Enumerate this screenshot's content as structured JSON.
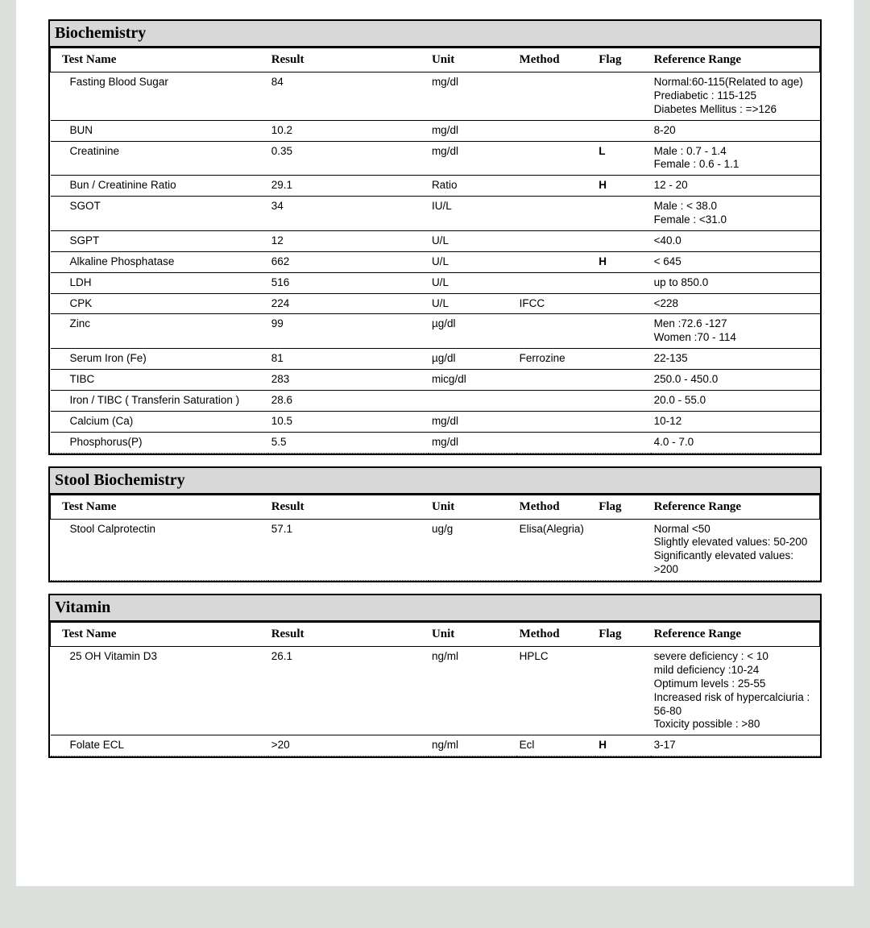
{
  "colors": {
    "page_bg": "#dde1de",
    "paper_bg": "#ffffff",
    "border": "#000000",
    "section_bg": "#d8d8d8",
    "dotted": "#555555"
  },
  "fontsizes": {
    "section_title_pt": 15,
    "header_pt": 11,
    "cell_pt": 10
  },
  "col_headers": {
    "test": "Test Name",
    "result": "Result",
    "unit": "Unit",
    "method": "Method",
    "flag": "Flag",
    "ref": "Reference Range"
  },
  "sections": [
    {
      "title": "Biochemistry",
      "rows": [
        {
          "test": "Fasting Blood Sugar",
          "result": "84",
          "unit": "mg/dl",
          "method": "",
          "flag": "",
          "ref": "Normal:60-115(Related to age)\nPrediabetic : 115-125\nDiabetes Mellitus : =>126",
          "solid": true
        },
        {
          "test": "BUN",
          "result": "10.2",
          "unit": "mg/dl",
          "method": "",
          "flag": "",
          "ref": "8-20",
          "solid": true
        },
        {
          "test": "Creatinine",
          "result": "0.35",
          "unit": "mg/dl",
          "method": "",
          "flag": "L",
          "ref": "Male    : 0.7 - 1.4\nFemale : 0.6 - 1.1",
          "solid": true
        },
        {
          "test": "Bun / Creatinine Ratio",
          "result": "29.1",
          "unit": "Ratio",
          "method": "",
          "flag": "H",
          "ref": "12 - 20",
          "solid": true
        },
        {
          "test": "SGOT",
          "result": "34",
          "unit": "IU/L",
          "method": "",
          "flag": "",
          "ref": "Male : < 38.0\nFemale : <31.0",
          "solid": true
        },
        {
          "test": "SGPT",
          "result": "12",
          "unit": "U/L",
          "method": "",
          "flag": "",
          "ref": "<40.0",
          "solid": true
        },
        {
          "test": "Alkaline Phosphatase",
          "result": "662",
          "unit": "U/L",
          "method": "",
          "flag": "H",
          "ref": "< 645",
          "solid": true
        },
        {
          "test": "LDH",
          "result": "516",
          "unit": "U/L",
          "method": "",
          "flag": "",
          "ref": "up to 850.0",
          "solid": true
        },
        {
          "test": "CPK",
          "result": "224",
          "unit": "U/L",
          "method": "IFCC",
          "flag": "",
          "ref": "<228",
          "solid": true
        },
        {
          "test": "Zinc",
          "result": "99",
          "unit": "µg/dl",
          "method": "",
          "flag": "",
          "ref": "Men :72.6 -127\nWomen :70 - 114",
          "solid": true
        },
        {
          "test": "Serum Iron (Fe)",
          "result": "81",
          "unit": "µg/dl",
          "method": "Ferrozine",
          "flag": "",
          "ref": "22-135",
          "solid": true
        },
        {
          "test": "TIBC",
          "result": "283",
          "unit": "micg/dl",
          "method": "",
          "flag": "",
          "ref": "250.0 - 450.0",
          "solid": true
        },
        {
          "test": "Iron / TIBC ( Transferin Saturation )",
          "result": "28.6",
          "unit": "",
          "method": "",
          "flag": "",
          "ref": "20.0 - 55.0",
          "solid": true
        },
        {
          "test": "Calcium (Ca)",
          "result": "10.5",
          "unit": "mg/dl",
          "method": "",
          "flag": "",
          "ref": "10-12",
          "solid": true
        },
        {
          "test": "Phosphorus(P)",
          "result": "5.5",
          "unit": "mg/dl",
          "method": "",
          "flag": "",
          "ref": "4.0 - 7.0",
          "solid": false
        }
      ]
    },
    {
      "title": "Stool Biochemistry",
      "rows": [
        {
          "test": "Stool Calprotectin",
          "result": "57.1",
          "unit": "ug/g",
          "method": "Elisa(Alegria)",
          "flag": "",
          "ref": "Normal <50\nSlightly elevated values: 50-200\nSignificantly elevated values: >200",
          "solid": false
        }
      ]
    },
    {
      "title": "Vitamin",
      "rows": [
        {
          "test": "25 OH Vitamin D3",
          "result": "26.1",
          "unit": "ng/ml",
          "method": "HPLC",
          "flag": "",
          "ref": "severe deficiency :  < 10\nmild deficiency   :10-24\nOptimum levels    : 25-55\nIncreased risk of hypercalciuria  : 56-80\nToxicity possible : >80",
          "solid": true
        },
        {
          "test": "Folate  ECL",
          "result": ">20",
          "unit": "ng/ml",
          "method": "Ecl",
          "flag": "H",
          "ref": "3-17",
          "solid": false
        }
      ]
    }
  ]
}
